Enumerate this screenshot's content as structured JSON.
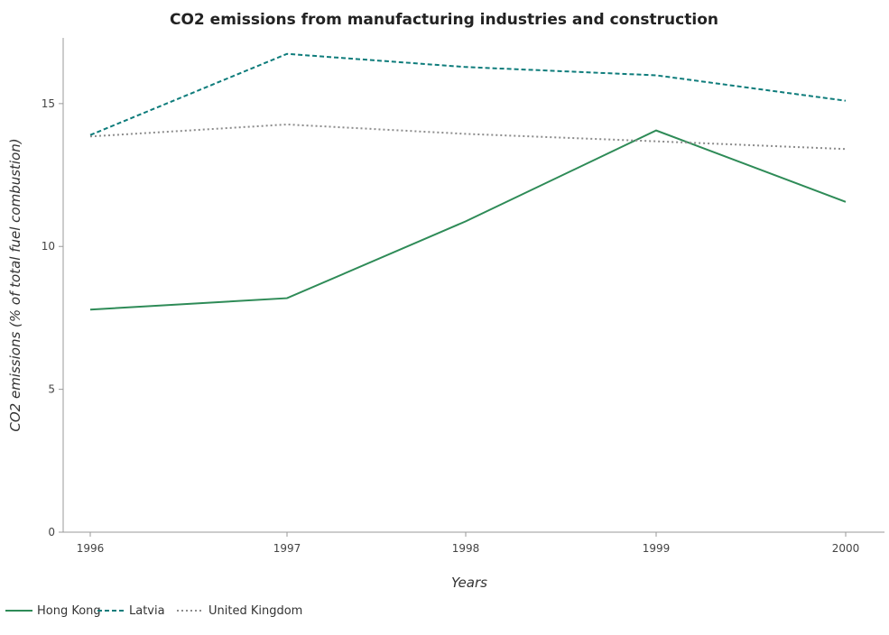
{
  "chart_data": {
    "type": "line",
    "title": "CO2 emissions from manufacturing industries and construction",
    "xlabel": "Years",
    "ylabel": "CO2 emissions (% of total fuel combustion)",
    "categories": [
      "1996",
      "1997",
      "1998",
      "1999",
      "2000"
    ],
    "ylim": [
      0,
      17.3
    ],
    "yticks": [
      0,
      5,
      10,
      15
    ],
    "grid": false,
    "legend_position": "bottom-left",
    "series": [
      {
        "name": "Hong Kong",
        "color": "#2e8b57",
        "dash": "solid",
        "values": [
          7.79,
          8.19,
          10.88,
          14.06,
          11.56
        ]
      },
      {
        "name": "Latvia",
        "color": "#0e7c7b",
        "dash": "dashed",
        "values": [
          13.9,
          16.74,
          16.28,
          15.99,
          15.1
        ]
      },
      {
        "name": "United Kingdom",
        "color": "#8c8c8c",
        "dash": "dotted",
        "values": [
          13.85,
          14.27,
          13.94,
          13.68,
          13.41
        ]
      }
    ]
  }
}
